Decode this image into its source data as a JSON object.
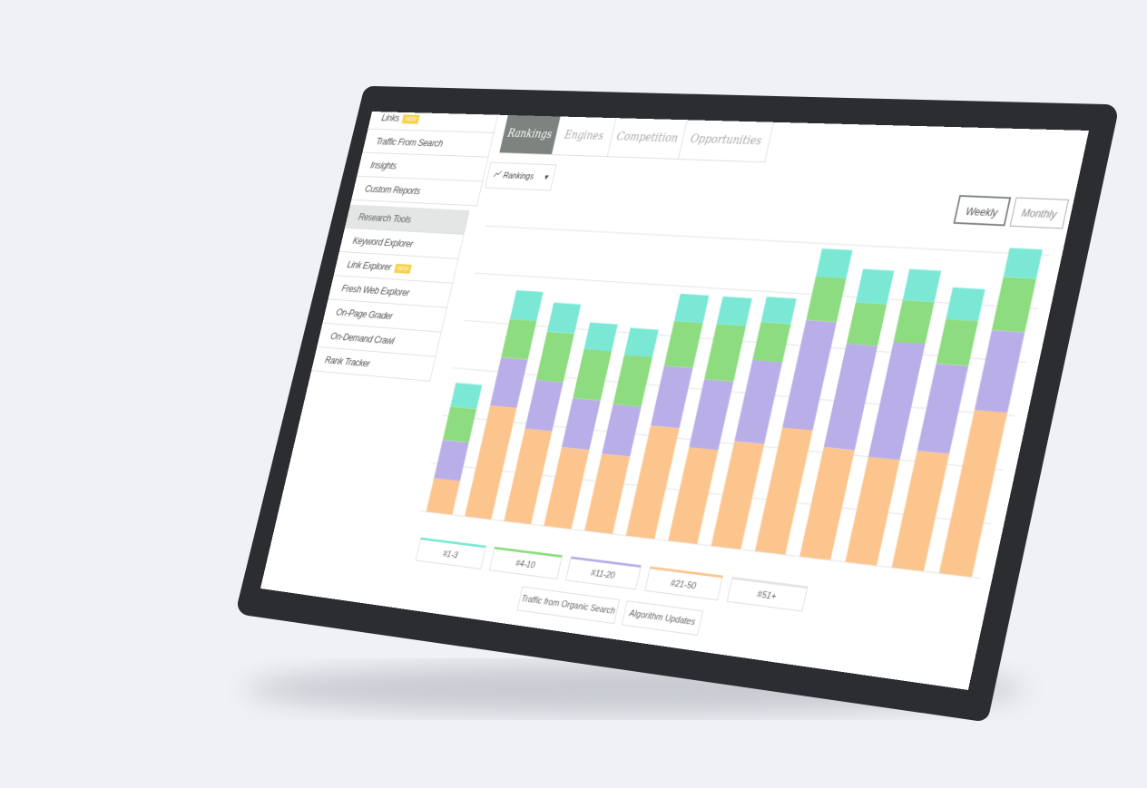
{
  "sidebar": {
    "items": [
      {
        "label": "Links",
        "badge": "NEW"
      },
      {
        "label": "Traffic From Search"
      },
      {
        "label": "Insights"
      },
      {
        "label": "Custom Reports"
      }
    ],
    "section_title": "Research Tools",
    "tools": [
      {
        "label": "Keyword Explorer"
      },
      {
        "label": "Link Explorer",
        "badge": "NEW"
      },
      {
        "label": "Fresh Web Explorer"
      },
      {
        "label": "On-Page Grader"
      },
      {
        "label": "On-Demand Crawl"
      },
      {
        "label": "Rank Tracker"
      }
    ]
  },
  "tabs": [
    "Rankings",
    "Engines",
    "Competition",
    "Opportunities"
  ],
  "active_tab": 0,
  "dropdown": "Rankings",
  "period_buttons": [
    "Weekly",
    "Monthly"
  ],
  "active_period": 0,
  "chart_data": {
    "type": "bar",
    "stacked": true,
    "ylim": [
      0,
      6
    ],
    "grid_lines": [
      0,
      1,
      2,
      3,
      4,
      5,
      6
    ],
    "series": [
      {
        "name": "#21-50",
        "color": "#fcc58e",
        "values": [
          0.7,
          2.3,
          1.9,
          1.6,
          1.55,
          2.2,
          1.85,
          2.05,
          2.4,
          2.1,
          2.0,
          2.2,
          3.05
        ]
      },
      {
        "name": "#11-20",
        "color": "#b9aee8",
        "values": [
          0.8,
          1.0,
          1.0,
          1.0,
          1.0,
          1.2,
          1.35,
          1.6,
          2.1,
          2.0,
          2.2,
          1.65,
          1.5
        ]
      },
      {
        "name": "#4-10",
        "color": "#8ddc7f",
        "values": [
          0.7,
          0.8,
          1.0,
          1.0,
          1.0,
          0.9,
          1.1,
          0.75,
          0.85,
          0.8,
          0.8,
          0.85,
          1.0
        ]
      },
      {
        "name": "#1-3",
        "color": "#7be8d6",
        "values": [
          0.5,
          0.6,
          0.6,
          0.55,
          0.55,
          0.55,
          0.55,
          0.5,
          0.55,
          0.65,
          0.6,
          0.6,
          0.55
        ]
      }
    ],
    "legend_order": [
      3,
      2,
      1,
      0
    ],
    "legend_extra": [
      "#51+"
    ],
    "toggles": [
      "Traffic from Organic Search",
      "Algorithm Updates"
    ]
  }
}
